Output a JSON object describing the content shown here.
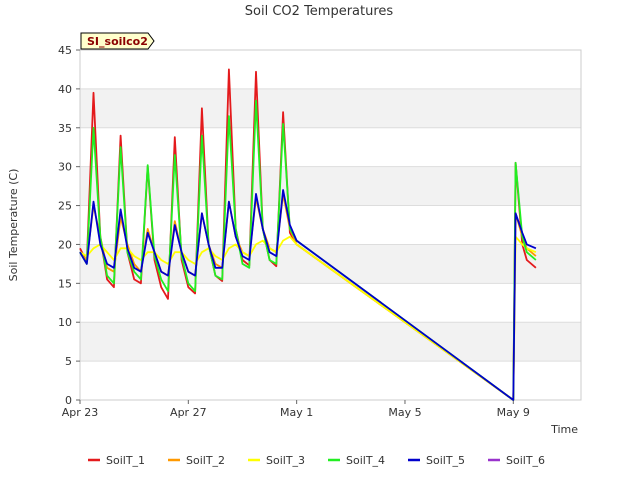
{
  "chart_data": {
    "type": "line",
    "title": "Soil CO2 Temperatures",
    "xlabel": "Time",
    "ylabel": "Soil Temperature (C)",
    "badge": "SI_soilco2",
    "ylim": [
      0,
      45
    ],
    "xlim": [
      "2023-04-23",
      "2023-05-11"
    ],
    "x_ticks": [
      "Apr 23",
      "Apr 27",
      "May 1",
      "May 5",
      "May 9"
    ],
    "y_ticks": [
      0,
      5,
      10,
      15,
      20,
      25,
      30,
      35,
      40,
      45
    ],
    "grid": true,
    "legend_position": "bottom",
    "colors": {
      "SoilT_1": "#e41a1c",
      "SoilT_2": "#ff9900",
      "SoilT_3": "#ffff00",
      "SoilT_4": "#22ee22",
      "SoilT_5": "#0000cc",
      "SoilT_6": "#9933cc"
    },
    "series": [
      {
        "name": "SoilT_1",
        "x": [
          "2023-04-23 00:00",
          "2023-04-23 06:00",
          "2023-04-23 12:00",
          "2023-04-23 18:00",
          "2023-04-24 00:00",
          "2023-04-24 06:00",
          "2023-04-24 12:00",
          "2023-04-24 18:00",
          "2023-04-25 00:00",
          "2023-04-25 06:00",
          "2023-04-25 12:00",
          "2023-04-25 18:00",
          "2023-04-26 00:00",
          "2023-04-26 06:00",
          "2023-04-26 12:00",
          "2023-04-26 18:00",
          "2023-04-27 00:00",
          "2023-04-27 06:00",
          "2023-04-27 12:00",
          "2023-04-27 18:00",
          "2023-04-28 00:00",
          "2023-04-28 06:00",
          "2023-04-28 12:00",
          "2023-04-28 18:00",
          "2023-04-29 00:00",
          "2023-04-29 06:00",
          "2023-04-29 12:00",
          "2023-04-29 18:00",
          "2023-04-30 00:00",
          "2023-04-30 06:00",
          "2023-04-30 12:00",
          "2023-04-30 18:00",
          "2023-05-01 00:00",
          "2023-05-09 00:00",
          "2023-05-09 02:00",
          "2023-05-09 08:00",
          "2023-05-09 12:00",
          "2023-05-09 20:00"
        ],
        "values": [
          19.5,
          17.8,
          39.5,
          21,
          15.5,
          14.5,
          34,
          19,
          15.5,
          15,
          30,
          18,
          14.5,
          13,
          33.8,
          18,
          14.5,
          13.7,
          37.5,
          20,
          16,
          15.3,
          42.5,
          22,
          18,
          17.3,
          42.2,
          22,
          18,
          17.2,
          37,
          21.5,
          20,
          0,
          30.5,
          20,
          18,
          17
        ]
      },
      {
        "name": "SoilT_2",
        "x": [
          "2023-04-23 00:00",
          "2023-04-23 06:00",
          "2023-04-23 12:00",
          "2023-04-23 18:00",
          "2023-04-24 00:00",
          "2023-04-24 06:00",
          "2023-04-24 12:00",
          "2023-04-24 18:00",
          "2023-04-25 00:00",
          "2023-04-25 06:00",
          "2023-04-25 12:00",
          "2023-04-25 18:00",
          "2023-04-26 00:00",
          "2023-04-26 06:00",
          "2023-04-26 12:00",
          "2023-04-26 18:00",
          "2023-04-27 00:00",
          "2023-04-27 06:00",
          "2023-04-27 12:00",
          "2023-04-27 18:00",
          "2023-04-28 00:00",
          "2023-04-28 06:00",
          "2023-04-28 12:00",
          "2023-04-28 18:00",
          "2023-04-29 00:00",
          "2023-04-29 06:00",
          "2023-04-29 12:00",
          "2023-04-29 18:00",
          "2023-04-30 00:00",
          "2023-04-30 06:00",
          "2023-04-30 12:00",
          "2023-04-30 18:00",
          "2023-05-01 00:00",
          "2023-05-09 00:00",
          "2023-05-09 02:00",
          "2023-05-09 08:00",
          "2023-05-09 12:00",
          "2023-05-09 20:00"
        ],
        "values": [
          19,
          18,
          25,
          21,
          17,
          16.5,
          23.5,
          20,
          17.5,
          16.5,
          22,
          19,
          16.5,
          16,
          23,
          19,
          16.5,
          16,
          24,
          20,
          17.5,
          17,
          25.5,
          21,
          19,
          18.5,
          26,
          22,
          19.5,
          19,
          26.5,
          22,
          20,
          0,
          24,
          21,
          19.5,
          18.5
        ]
      },
      {
        "name": "SoilT_3",
        "x": [
          "2023-04-23 00:00",
          "2023-04-23 06:00",
          "2023-04-23 12:00",
          "2023-04-23 18:00",
          "2023-04-24 00:00",
          "2023-04-24 06:00",
          "2023-04-24 12:00",
          "2023-04-24 18:00",
          "2023-04-25 00:00",
          "2023-04-25 06:00",
          "2023-04-25 12:00",
          "2023-04-25 18:00",
          "2023-04-26 00:00",
          "2023-04-26 06:00",
          "2023-04-26 12:00",
          "2023-04-26 18:00",
          "2023-04-27 00:00",
          "2023-04-27 06:00",
          "2023-04-27 12:00",
          "2023-04-27 18:00",
          "2023-04-28 00:00",
          "2023-04-28 06:00",
          "2023-04-28 12:00",
          "2023-04-28 18:00",
          "2023-04-29 00:00",
          "2023-04-29 06:00",
          "2023-04-29 12:00",
          "2023-04-29 18:00",
          "2023-04-30 00:00",
          "2023-04-30 06:00",
          "2023-04-30 12:00",
          "2023-04-30 18:00",
          "2023-05-01 00:00",
          "2023-05-09 00:00",
          "2023-05-09 02:00",
          "2023-05-09 08:00",
          "2023-05-09 12:00",
          "2023-05-09 20:00"
        ],
        "values": [
          19,
          18.5,
          19.5,
          20,
          19,
          18,
          19.5,
          19.5,
          18.5,
          18,
          19,
          19,
          18,
          17.5,
          19,
          19,
          18,
          17.5,
          19,
          19.5,
          18.5,
          18,
          19.5,
          20,
          19,
          18.5,
          20,
          20.5,
          19.5,
          19,
          20.5,
          21,
          20,
          0,
          21,
          20,
          19.5,
          19
        ]
      },
      {
        "name": "SoilT_4",
        "x": [
          "2023-04-23 00:00",
          "2023-04-23 06:00",
          "2023-04-23 12:00",
          "2023-04-23 18:00",
          "2023-04-24 00:00",
          "2023-04-24 06:00",
          "2023-04-24 12:00",
          "2023-04-24 18:00",
          "2023-04-25 00:00",
          "2023-04-25 06:00",
          "2023-04-25 12:00",
          "2023-04-25 18:00",
          "2023-04-26 00:00",
          "2023-04-26 06:00",
          "2023-04-26 12:00",
          "2023-04-26 18:00",
          "2023-04-27 00:00",
          "2023-04-27 06:00",
          "2023-04-27 12:00",
          "2023-04-27 18:00",
          "2023-04-28 00:00",
          "2023-04-28 06:00",
          "2023-04-28 12:00",
          "2023-04-28 18:00",
          "2023-04-29 00:00",
          "2023-04-29 06:00",
          "2023-04-29 12:00",
          "2023-04-29 18:00",
          "2023-04-30 00:00",
          "2023-04-30 06:00",
          "2023-04-30 12:00",
          "2023-04-30 18:00",
          "2023-05-01 00:00",
          "2023-05-09 00:00",
          "2023-05-09 02:00",
          "2023-05-09 08:00",
          "2023-05-09 12:00",
          "2023-05-09 20:00"
        ],
        "values": [
          19,
          17.5,
          35,
          21,
          16,
          15,
          32.5,
          19,
          16.5,
          15.5,
          30.2,
          18.5,
          15.5,
          14,
          31.5,
          18.5,
          15,
          14,
          34,
          20,
          16,
          15.5,
          36.5,
          22,
          17.5,
          17,
          38.5,
          22,
          18,
          17.5,
          35.5,
          22,
          20.5,
          0,
          30.5,
          21,
          19,
          18
        ]
      },
      {
        "name": "SoilT_5",
        "x": [
          "2023-04-23 00:00",
          "2023-04-23 06:00",
          "2023-04-23 12:00",
          "2023-04-23 18:00",
          "2023-04-24 00:00",
          "2023-04-24 06:00",
          "2023-04-24 12:00",
          "2023-04-24 18:00",
          "2023-04-25 00:00",
          "2023-04-25 06:00",
          "2023-04-25 12:00",
          "2023-04-25 18:00",
          "2023-04-26 00:00",
          "2023-04-26 06:00",
          "2023-04-26 12:00",
          "2023-04-26 18:00",
          "2023-04-27 00:00",
          "2023-04-27 06:00",
          "2023-04-27 12:00",
          "2023-04-27 18:00",
          "2023-04-28 00:00",
          "2023-04-28 06:00",
          "2023-04-28 12:00",
          "2023-04-28 18:00",
          "2023-04-29 00:00",
          "2023-04-29 06:00",
          "2023-04-29 12:00",
          "2023-04-29 18:00",
          "2023-04-30 00:00",
          "2023-04-30 06:00",
          "2023-04-30 12:00",
          "2023-04-30 18:00",
          "2023-05-01 00:00",
          "2023-05-09 00:00",
          "2023-05-09 02:00",
          "2023-05-09 08:00",
          "2023-05-09 12:00",
          "2023-05-09 20:00"
        ],
        "values": [
          19,
          17.5,
          25.5,
          20,
          17.5,
          17,
          24.5,
          19.5,
          17,
          16.5,
          21.5,
          19,
          16.5,
          16,
          22.5,
          19,
          16.5,
          16,
          24,
          20,
          17,
          17,
          25.5,
          21,
          18.5,
          18,
          26.5,
          22,
          19,
          18.5,
          27,
          22.5,
          20.5,
          0,
          24,
          21.5,
          20,
          19.5
        ]
      },
      {
        "name": "SoilT_6",
        "x": [],
        "values": []
      }
    ]
  }
}
